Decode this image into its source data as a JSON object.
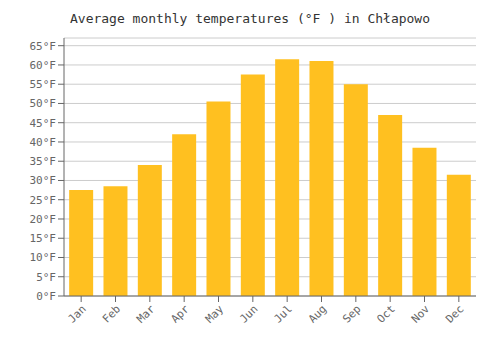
{
  "chart_data": {
    "type": "bar",
    "title": "Average monthly temperatures (°F ) in Chłapowo",
    "categories": [
      "Jan",
      "Feb",
      "Mar",
      "Apr",
      "May",
      "Jun",
      "Jul",
      "Aug",
      "Sep",
      "Oct",
      "Nov",
      "Dec"
    ],
    "values": [
      27.5,
      28.5,
      34.0,
      42.0,
      50.5,
      57.5,
      61.5,
      61.0,
      55.0,
      47.0,
      38.5,
      31.5
    ],
    "color": "#FFC020",
    "ylim": [
      0,
      67
    ],
    "yticks": [
      {
        "value": 0,
        "label": "0°F"
      },
      {
        "value": 5,
        "label": "5°F"
      },
      {
        "value": 10,
        "label": "10°F"
      },
      {
        "value": 15,
        "label": "15°F"
      },
      {
        "value": 20,
        "label": "20°F"
      },
      {
        "value": 25,
        "label": "25°F"
      },
      {
        "value": 30,
        "label": "30°F"
      },
      {
        "value": 35,
        "label": "35°F"
      },
      {
        "value": 40,
        "label": "40°F"
      },
      {
        "value": 45,
        "label": "45°F"
      },
      {
        "value": 50,
        "label": "50°F"
      },
      {
        "value": 55,
        "label": "55°F"
      },
      {
        "value": 60,
        "label": "60°F"
      },
      {
        "value": 65,
        "label": "65°F"
      }
    ],
    "grid": true
  }
}
